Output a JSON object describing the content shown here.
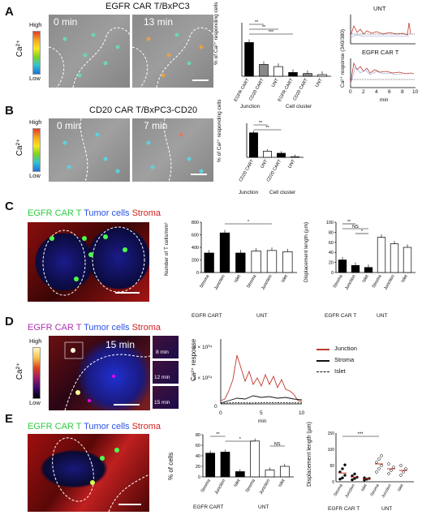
{
  "panels": {
    "A": {
      "letter": "A",
      "image_title": "EGFR CAR T/BxPC3",
      "scale_high": "High",
      "scale_low": "Low",
      "scale_label": "Ca²⁺",
      "time_left": "0 min",
      "time_right": "13 min",
      "bar_ylabel": "% of Ca²⁺ responding cells",
      "bar_labels": [
        "EGFR CART",
        "CD20 CART",
        "UNT",
        "EGFR CART",
        "CD20 CART",
        "UNT"
      ],
      "group_labels": [
        "Junction",
        "Cell cluster"
      ],
      "bar_values": [
        63,
        22,
        18,
        7,
        5,
        3
      ],
      "sig": [
        "**",
        "**",
        "***"
      ],
      "trace_top_title": "UNT",
      "trace_bottom_title": "EGFR CAR T",
      "trace_ylabel": "Ca²⁺ response (340/380)",
      "trace_xlabel": "min",
      "trace_xticks": [
        "0",
        "2",
        "4",
        "6",
        "8",
        "10"
      ]
    },
    "B": {
      "letter": "B",
      "image_title": "CD20 CAR T/BxPC3-CD20",
      "scale_high": "High",
      "scale_low": "Low",
      "scale_label": "Ca²⁺",
      "time_left": "0 min",
      "time_right": "7 min",
      "bar_ylabel": "% of Ca²⁺ responding cells",
      "bar_labels": [
        "CD20 CART",
        "UNT",
        "CD20 CART",
        "UNT"
      ],
      "group_labels": [
        "Junction",
        "Cell cluster"
      ],
      "bar_values": [
        36,
        9,
        6,
        1
      ],
      "sig": [
        "**",
        "**"
      ]
    },
    "C": {
      "letter": "C",
      "legend_green": "EGFR CAR T",
      "legend_blue": "Tumor cells",
      "legend_red": "Stroma",
      "bar1_ylabel": "Number of T cells/mm²",
      "bar1_yticks": [
        "0",
        "200",
        "400",
        "600",
        "800"
      ],
      "bar1_values": [
        310,
        630,
        310,
        340,
        350,
        330
      ],
      "bar1_sig": "*",
      "bar2_ylabel": "Displacement length (µm)",
      "bar2_yticks": [
        "0",
        "20",
        "40",
        "60",
        "80",
        "100"
      ],
      "bar2_values": [
        25,
        14,
        10,
        70,
        57,
        50
      ],
      "bar2_sig": [
        "**",
        "NS",
        "*"
      ],
      "categories": [
        "Stroma",
        "Junction",
        "Islet",
        "Stroma",
        "Junction",
        "Islet"
      ],
      "groups": [
        "EGFR CART",
        "UNT"
      ],
      "groups_right": [
        "EGFR CAR T",
        "UNT"
      ]
    },
    "D": {
      "letter": "D",
      "legend_purple": "EGFR CAR T",
      "legend_blue": "Tumor cells",
      "legend_red": "Stroma",
      "scale_high": "High",
      "scale_low": "Low",
      "scale_label": "Ca²⁺",
      "time_main": "15 min",
      "time_insets": [
        "8 min",
        "12 min",
        "15 min"
      ],
      "trace_ylabel": "Ca²⁺ response",
      "trace_yticks": [
        "0",
        "2 × 10⁰⁴",
        "4 × 10⁰⁴"
      ],
      "trace_xticks": [
        "0",
        "5",
        "10"
      ],
      "trace_xlabel": "min",
      "legend": [
        "Junction",
        "Stroma",
        "Islet"
      ]
    },
    "E": {
      "letter": "E",
      "legend_green": "EGFR CAR T",
      "legend_blue": "Tumor cells",
      "legend_red": "Stroma",
      "bar_ylabel": "% of cells",
      "bar_yticks": [
        "0",
        "20",
        "40",
        "60",
        "80"
      ],
      "bar_values": [
        45,
        47,
        10,
        68,
        13,
        20
      ],
      "sig": [
        "**",
        "*",
        "NS"
      ],
      "categories": [
        "Stroma",
        "Junction",
        "Islet",
        "Stroma",
        "Junction",
        "Islet"
      ],
      "groups": [
        "EGFR CART",
        "UNT"
      ],
      "scatter_ylabel": "Displacement length (µm)",
      "scatter_yticks": [
        "0",
        "50",
        "100",
        "150"
      ],
      "scatter_sig": "***",
      "scatter_groups": [
        "EGFR CAR T",
        "UNT"
      ]
    }
  },
  "chart_data": [
    {
      "type": "bar",
      "id": "A-bar",
      "categories": [
        "EGFR CART",
        "CD20 CART",
        "UNT",
        "EGFR CART",
        "CD20 CART",
        "UNT"
      ],
      "values": [
        63,
        22,
        18,
        7,
        5,
        3
      ],
      "ylabel": "% of Ca²⁺ responding cells",
      "ylim": [
        0,
        100
      ]
    },
    {
      "type": "bar",
      "id": "B-bar",
      "categories": [
        "CD20 CART",
        "UNT",
        "CD20 CART",
        "UNT"
      ],
      "values": [
        36,
        9,
        6,
        1
      ],
      "ylabel": "% of Ca²⁺ responding cells",
      "ylim": [
        0,
        50
      ]
    },
    {
      "type": "bar",
      "id": "C-bar1",
      "categories": [
        "Stroma",
        "Junction",
        "Islet",
        "Stroma",
        "Junction",
        "Islet"
      ],
      "values": [
        310,
        630,
        310,
        340,
        350,
        330
      ],
      "ylabel": "Number of T cells/mm²",
      "ylim": [
        0,
        800
      ]
    },
    {
      "type": "bar",
      "id": "C-bar2",
      "categories": [
        "Stroma",
        "Junction",
        "Islet",
        "Stroma",
        "Junction",
        "Islet"
      ],
      "values": [
        25,
        14,
        10,
        70,
        57,
        50
      ],
      "ylabel": "Displacement length (µm)",
      "ylim": [
        0,
        100
      ]
    },
    {
      "type": "line",
      "id": "D-trace",
      "series": [
        {
          "name": "Junction",
          "color": "#c0392b",
          "x": [
            0,
            0.5,
            1,
            1.5,
            2,
            2.5,
            3,
            3.5,
            4,
            4.5,
            5,
            5.5,
            6,
            6.5,
            7,
            7.5,
            8,
            8.5,
            9,
            9.5,
            10
          ],
          "y": [
            2000,
            3000,
            8000,
            15000,
            30000,
            22000,
            14000,
            20000,
            12000,
            16000,
            11000,
            18000,
            12000,
            17000,
            10000,
            15000,
            9000,
            8000,
            6000,
            2000,
            1500
          ]
        },
        {
          "name": "Stroma",
          "color": "#111111",
          "x": [
            0,
            1,
            2,
            3,
            4,
            5,
            6,
            7,
            8,
            9,
            10
          ],
          "y": [
            500,
            2000,
            3500,
            3000,
            5000,
            4000,
            4500,
            3500,
            4000,
            3000,
            2500
          ]
        },
        {
          "name": "Islet",
          "color": "#111111",
          "x": [
            0,
            2,
            4,
            6,
            8,
            10
          ],
          "y": [
            500,
            700,
            600,
            800,
            700,
            600
          ]
        }
      ],
      "xlabel": "min",
      "ylabel": "Ca²⁺ response",
      "xlim": [
        0,
        10
      ],
      "ylim": [
        0,
        40000
      ]
    },
    {
      "type": "bar",
      "id": "E-bar",
      "categories": [
        "Stroma",
        "Junction",
        "Islet",
        "Stroma",
        "Junction",
        "Islet"
      ],
      "values": [
        45,
        47,
        10,
        68,
        13,
        20
      ],
      "ylabel": "% of cells",
      "ylim": [
        0,
        80
      ]
    }
  ]
}
